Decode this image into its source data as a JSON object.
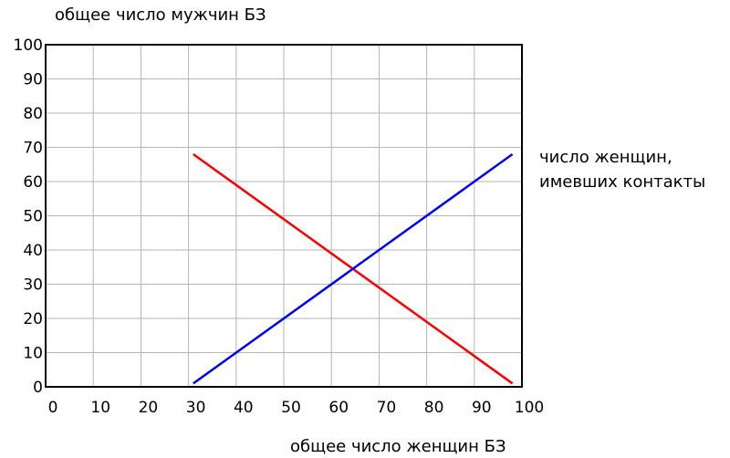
{
  "chart_data": {
    "type": "line",
    "ylabel": "общее число мужчин БЗ",
    "xlabel": "общее число женщин БЗ",
    "annotation": [
      "число женщин,",
      "имевших контакты"
    ],
    "xlim": [
      0,
      100
    ],
    "ylim": [
      0,
      100
    ],
    "x_ticks": [
      0,
      10,
      20,
      30,
      40,
      50,
      60,
      70,
      80,
      90,
      100
    ],
    "y_ticks": [
      0,
      10,
      20,
      30,
      40,
      50,
      60,
      70,
      80,
      90,
      100
    ],
    "grid": true,
    "series": [
      {
        "color": "#ff0000",
        "points": [
          [
            31,
            68
          ],
          [
            98,
            1
          ]
        ]
      },
      {
        "color": "#0000ff",
        "points": [
          [
            31,
            1
          ],
          [
            98,
            68
          ]
        ]
      }
    ]
  }
}
